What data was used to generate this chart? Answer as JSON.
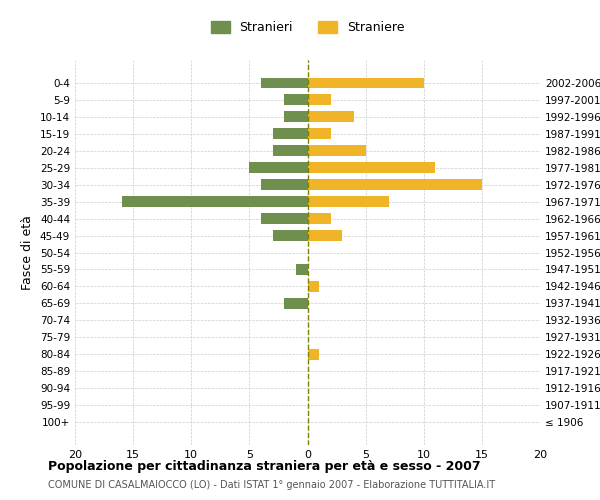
{
  "age_groups": [
    "100+",
    "95-99",
    "90-94",
    "85-89",
    "80-84",
    "75-79",
    "70-74",
    "65-69",
    "60-64",
    "55-59",
    "50-54",
    "45-49",
    "40-44",
    "35-39",
    "30-34",
    "25-29",
    "20-24",
    "15-19",
    "10-14",
    "5-9",
    "0-4"
  ],
  "birth_years": [
    "≤ 1906",
    "1907-1911",
    "1912-1916",
    "1917-1921",
    "1922-1926",
    "1927-1931",
    "1932-1936",
    "1937-1941",
    "1942-1946",
    "1947-1951",
    "1952-1956",
    "1957-1961",
    "1962-1966",
    "1967-1971",
    "1972-1976",
    "1977-1981",
    "1982-1986",
    "1987-1991",
    "1992-1996",
    "1997-2001",
    "2002-2006"
  ],
  "males": [
    0,
    0,
    0,
    0,
    0,
    0,
    0,
    2,
    0,
    1,
    0,
    3,
    4,
    16,
    4,
    5,
    3,
    3,
    2,
    2,
    4
  ],
  "females": [
    0,
    0,
    0,
    0,
    1,
    0,
    0,
    0,
    1,
    0,
    0,
    3,
    2,
    7,
    15,
    11,
    5,
    2,
    4,
    2,
    10
  ],
  "male_color": "#6e8f4e",
  "female_color": "#f0b429",
  "title": "Popolazione per cittadinanza straniera per età e sesso - 2007",
  "subtitle": "COMUNE DI CASALMAIOCCO (LO) - Dati ISTAT 1° gennaio 2007 - Elaborazione TUTTITALIA.IT",
  "ylabel_left": "Fasce di età",
  "legend_male": "Stranieri",
  "legend_female": "Straniere",
  "xlim": 20,
  "background_color": "#ffffff",
  "grid_color": "#cccccc"
}
